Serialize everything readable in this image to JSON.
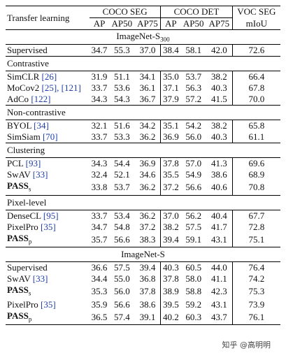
{
  "header": {
    "row_label": "Transfer learning",
    "groups": [
      "COCO SEG",
      "COCO DET",
      "VOC SEG"
    ],
    "columns": [
      "AP",
      "AP50",
      "AP75",
      "AP",
      "AP50",
      "AP75",
      "mIoU"
    ]
  },
  "sections": [
    {
      "title": "ImageNet-S300",
      "centered": true,
      "rows": [
        {
          "name": "Supervised",
          "cite": "",
          "values": [
            "34.7",
            "55.3",
            "37.0",
            "38.4",
            "58.1",
            "42.0",
            "72.6"
          ]
        }
      ]
    },
    {
      "title": "Contrastive",
      "rows": [
        {
          "name": "SimCLR",
          "cite": "[26]",
          "values": [
            "31.9",
            "51.1",
            "34.1",
            "35.0",
            "53.7",
            "38.2",
            "66.4"
          ]
        },
        {
          "name": "MoCov2",
          "cite": "[25], [121]",
          "values": [
            "33.7",
            "53.6",
            "36.1",
            "37.1",
            "56.3",
            "40.3",
            "67.8"
          ]
        },
        {
          "name": "AdCo",
          "cite": "[122]",
          "values": [
            "34.3",
            "54.3",
            "36.7",
            "37.9",
            "57.2",
            "41.5",
            "70.0"
          ]
        }
      ]
    },
    {
      "title": "Non-contrastive",
      "rows": [
        {
          "name": "BYOL",
          "cite": "[34]",
          "values": [
            "32.1",
            "51.6",
            "34.2",
            "35.1",
            "54.2",
            "38.2",
            "65.8"
          ]
        },
        {
          "name": "SimSiam",
          "cite": "[70]",
          "values": [
            "33.7",
            "53.3",
            "36.2",
            "36.9",
            "56.0",
            "40.3",
            "61.1"
          ]
        }
      ]
    },
    {
      "title": "Clustering",
      "rows": [
        {
          "name": "PCL",
          "cite": "[93]",
          "values": [
            "34.3",
            "54.4",
            "36.9",
            "37.8",
            "57.0",
            "41.3",
            "69.6"
          ]
        },
        {
          "name": "SwAV",
          "cite": "[33]",
          "values": [
            "32.4",
            "52.1",
            "34.6",
            "35.5",
            "54.9",
            "38.6",
            "68.9"
          ]
        },
        {
          "name": "PASS",
          "sub": "s",
          "bold": true,
          "cite": "",
          "values": [
            "33.8",
            "53.7",
            "36.2",
            "37.2",
            "56.6",
            "40.6",
            "70.8"
          ]
        }
      ]
    },
    {
      "title": "Pixel-level",
      "rows": [
        {
          "name": "DenseCL",
          "cite": "[95]",
          "values": [
            "33.7",
            "53.4",
            "36.2",
            "37.0",
            "56.2",
            "40.4",
            "67.7"
          ]
        },
        {
          "name": "PixelPro",
          "cite": "[35]",
          "values": [
            "34.7",
            "54.8",
            "37.2",
            "38.2",
            "57.5",
            "41.7",
            "72.8"
          ]
        },
        {
          "name": "PASS",
          "sub": "p",
          "bold": true,
          "cite": "",
          "values": [
            "35.7",
            "56.6",
            "38.3",
            "39.4",
            "59.1",
            "43.1",
            "75.1"
          ]
        }
      ]
    },
    {
      "title": "ImageNet-S",
      "centered": true,
      "rows": [
        {
          "name": "Supervised",
          "cite": "",
          "values": [
            "36.6",
            "57.5",
            "39.4",
            "40.3",
            "60.5",
            "44.0",
            "76.4"
          ]
        },
        {
          "name": "SwAV",
          "cite": "[33]",
          "values": [
            "34.4",
            "55.0",
            "36.8",
            "37.8",
            "58.0",
            "41.1",
            "74.2"
          ]
        },
        {
          "name": "PASS",
          "sub": "s",
          "bold": true,
          "cite": "",
          "values": [
            "35.3",
            "56.0",
            "37.8",
            "38.9",
            "58.8",
            "42.3",
            "75.3"
          ]
        },
        {
          "name": "PixelPro",
          "cite": "[35]",
          "values": [
            "35.9",
            "56.6",
            "38.6",
            "39.5",
            "59.2",
            "43.1",
            "73.9"
          ]
        },
        {
          "name": "PASS",
          "sub": "p",
          "bold": true,
          "cite": "",
          "values": [
            "36.5",
            "57.4",
            "39.1",
            "40.2",
            "60.3",
            "43.7",
            "76.1"
          ]
        }
      ]
    }
  ],
  "watermark": "知乎 @高明明"
}
